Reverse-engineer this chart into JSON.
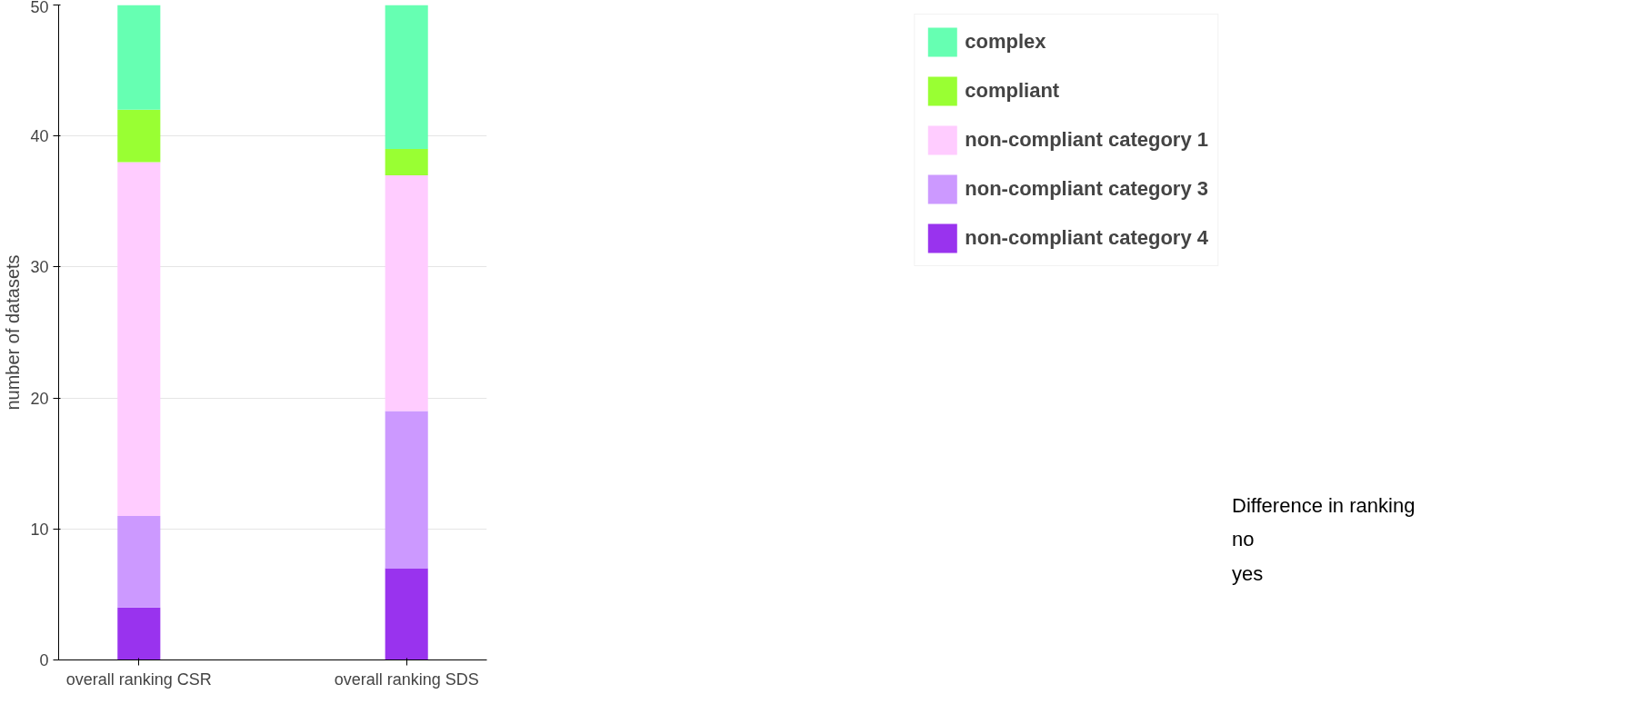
{
  "chart_data": {
    "type": "bar",
    "stacked": true,
    "ylabel": "number of datasets",
    "categories": [
      "overall ranking CSR",
      "overall ranking SDS"
    ],
    "series": [
      {
        "name": "non-compliant category 4",
        "color": "#9933ee",
        "values": [
          4,
          7
        ]
      },
      {
        "name": "non-compliant category 3",
        "color": "#cc99ff",
        "values": [
          7,
          12
        ]
      },
      {
        "name": "non-compliant category 1",
        "color": "#ffccff",
        "values": [
          27,
          18
        ]
      },
      {
        "name": "compliant",
        "color": "#99ff33",
        "values": [
          4,
          2
        ]
      },
      {
        "name": "complex",
        "color": "#66ffb2",
        "values": [
          8,
          11
        ]
      }
    ],
    "ylim": [
      0,
      50
    ],
    "yticks": [
      0,
      10,
      20,
      30,
      40,
      50
    ],
    "grid": "y",
    "legend": "right",
    "annotations": [
      "Difference in ranking",
      "no",
      "yes"
    ]
  }
}
